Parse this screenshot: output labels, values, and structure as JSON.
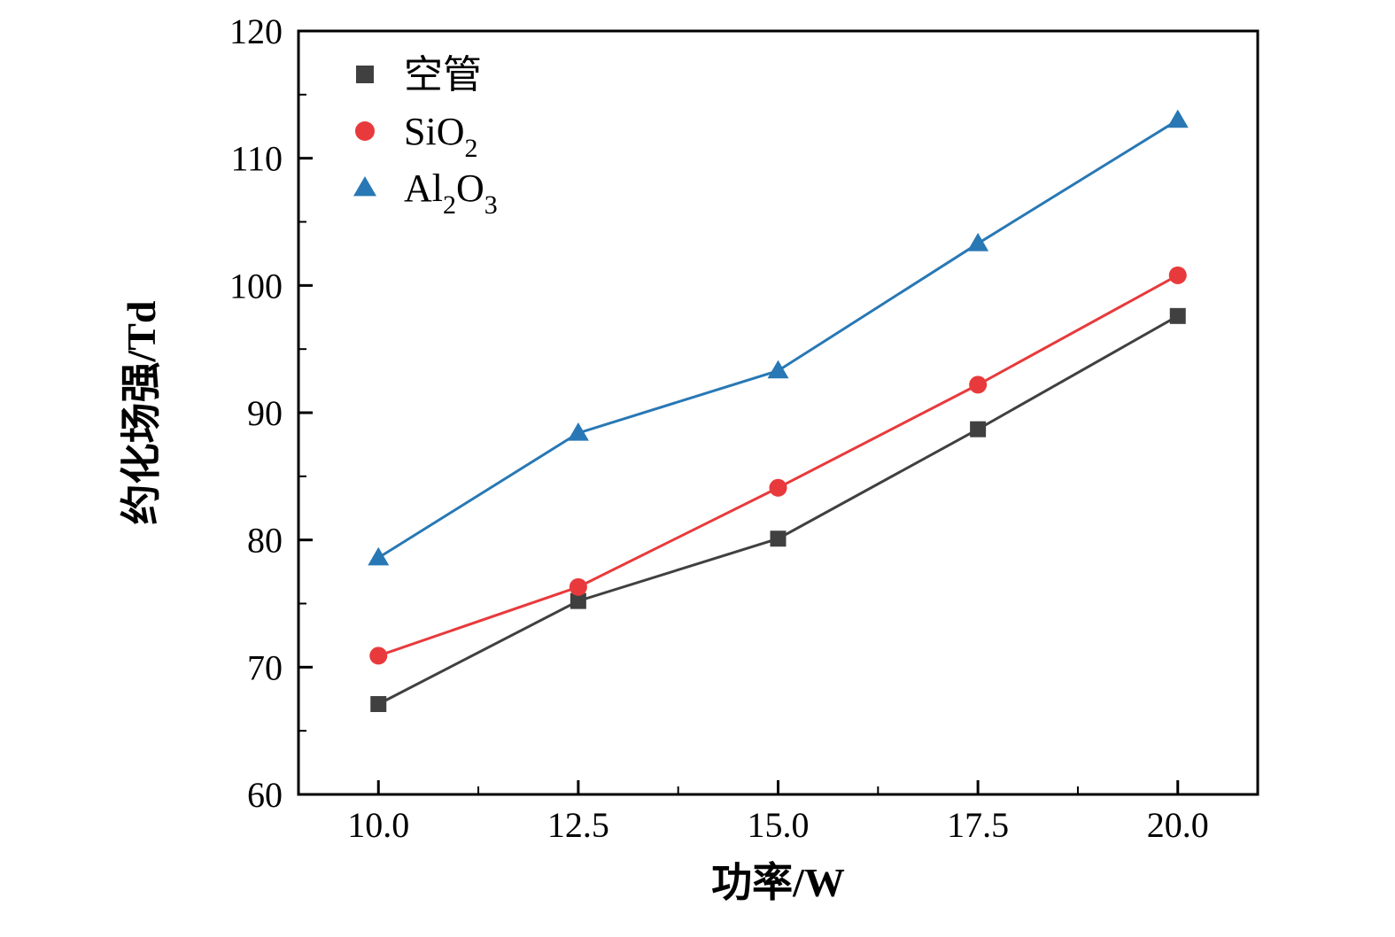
{
  "chart_data": {
    "type": "line",
    "x": [
      10,
      12.5,
      15,
      17.5,
      20
    ],
    "series": [
      {
        "name": "空管",
        "marker": "square",
        "color": "#404040",
        "values": [
          67.1,
          75.2,
          80.1,
          88.7,
          97.6
        ]
      },
      {
        "name": "SiO₂",
        "marker": "circle",
        "color": "#e83a3c",
        "values": [
          70.9,
          76.3,
          84.1,
          92.2,
          100.8
        ]
      },
      {
        "name": "Al₂O₃",
        "marker": "triangle",
        "color": "#2878b5",
        "values": [
          78.6,
          88.4,
          93.3,
          103.3,
          113.0
        ]
      }
    ],
    "title": "",
    "xlabel": "功率/W",
    "ylabel": "约化场强/Td",
    "xlim": [
      9,
      21
    ],
    "ylim": [
      60,
      120
    ],
    "xticks": {
      "values": [
        10,
        12.5,
        15,
        17.5,
        20
      ],
      "labels": [
        "10.0",
        "12.5",
        "15.0",
        "17.5",
        "20.0"
      ]
    },
    "yticks": {
      "values": [
        60,
        70,
        80,
        90,
        100,
        110,
        120
      ],
      "labels": [
        "60",
        "70",
        "80",
        "90",
        "100",
        "110",
        "120"
      ]
    },
    "xminor": [
      11.25,
      13.75,
      16.25,
      18.75
    ],
    "yminor": [
      65,
      75,
      85,
      95,
      105,
      115
    ],
    "grid": false,
    "legend_position": "upper-left",
    "frame_color": "#000000"
  }
}
